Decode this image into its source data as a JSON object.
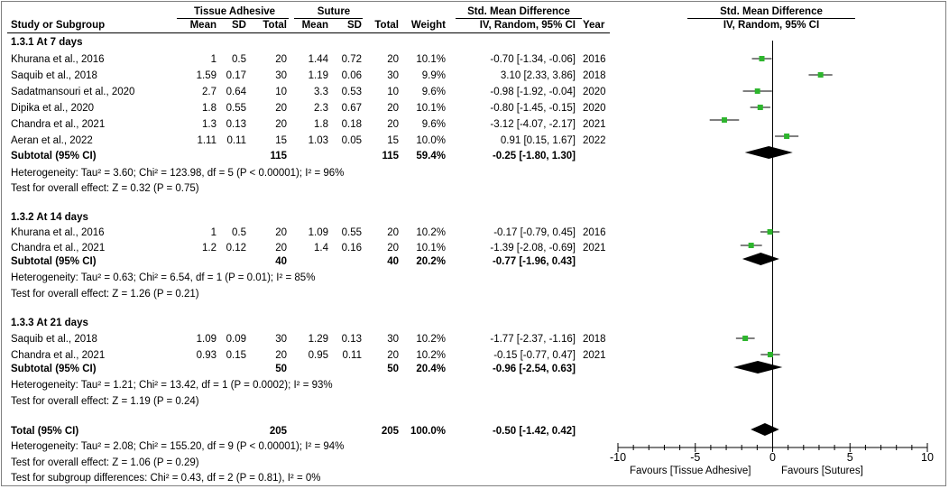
{
  "header": {
    "group1": "Tissue Adhesive",
    "group2": "Suture",
    "smd_header": "Std. Mean Difference",
    "plot_header": "Std. Mean Difference",
    "col_study": "Study or Subgroup",
    "col_mean1": "Mean",
    "col_sd1": "SD",
    "col_total1": "Total",
    "col_mean2": "Mean",
    "col_sd2": "SD",
    "col_total2": "Total",
    "col_weight": "Weight",
    "col_ci": "IV, Random, 95% CI",
    "col_year": "Year",
    "plot_sub": "IV, Random, 95% CI"
  },
  "groups": [
    {
      "title": "1.3.1 At 7 days",
      "studies": [
        {
          "name": "Khurana et al., 2016",
          "m1": "1",
          "sd1": "0.5",
          "n1": "20",
          "m2": "1.44",
          "sd2": "0.72",
          "n2": "20",
          "weight": "10.1%",
          "ci": "-0.70 [-1.34, -0.06]",
          "year": "2016"
        },
        {
          "name": "Saquib et al., 2018",
          "m1": "1.59",
          "sd1": "0.17",
          "n1": "30",
          "m2": "1.19",
          "sd2": "0.06",
          "n2": "30",
          "weight": "9.9%",
          "ci": "3.10 [2.33, 3.86]",
          "year": "2018"
        },
        {
          "name": "Sadatmansouri et al., 2020",
          "m1": "2.7",
          "sd1": "0.64",
          "n1": "10",
          "m2": "3.3",
          "sd2": "0.53",
          "n2": "10",
          "weight": "9.6%",
          "ci": "-0.98 [-1.92, -0.04]",
          "year": "2020"
        },
        {
          "name": "Dipika et al., 2020",
          "m1": "1.8",
          "sd1": "0.55",
          "n1": "20",
          "m2": "2.3",
          "sd2": "0.67",
          "n2": "20",
          "weight": "10.1%",
          "ci": "-0.80 [-1.45, -0.15]",
          "year": "2020"
        },
        {
          "name": "Chandra et al., 2021",
          "m1": "1.3",
          "sd1": "0.13",
          "n1": "20",
          "m2": "1.8",
          "sd2": "0.18",
          "n2": "20",
          "weight": "9.6%",
          "ci": "-3.12 [-4.07, -2.17]",
          "year": "2021"
        },
        {
          "name": "Aeran et al., 2022",
          "m1": "1.11",
          "sd1": "0.11",
          "n1": "15",
          "m2": "1.03",
          "sd2": "0.05",
          "n2": "15",
          "weight": "10.0%",
          "ci": "0.91 [0.15, 1.67]",
          "year": "2022"
        }
      ],
      "subtotal": {
        "label": "Subtotal (95% CI)",
        "n1": "115",
        "n2": "115",
        "weight": "59.4%",
        "ci": "-0.25 [-1.80, 1.30]"
      },
      "heterogeneity": "Heterogeneity: Tau² = 3.60; Chi² = 123.98, df = 5 (P < 0.00001); I² = 96%",
      "overall": "Test for overall effect: Z = 0.32 (P = 0.75)"
    },
    {
      "title": "1.3.2 At 14 days",
      "studies": [
        {
          "name": "Khurana et al., 2016",
          "m1": "1",
          "sd1": "0.5",
          "n1": "20",
          "m2": "1.09",
          "sd2": "0.55",
          "n2": "20",
          "weight": "10.2%",
          "ci": "-0.17 [-0.79, 0.45]",
          "year": "2016"
        },
        {
          "name": "Chandra et al., 2021",
          "m1": "1.2",
          "sd1": "0.12",
          "n1": "20",
          "m2": "1.4",
          "sd2": "0.16",
          "n2": "20",
          "weight": "10.1%",
          "ci": "-1.39 [-2.08, -0.69]",
          "year": "2021"
        }
      ],
      "subtotal": {
        "label": "Subtotal (95% CI)",
        "n1": "40",
        "n2": "40",
        "weight": "20.2%",
        "ci": "-0.77 [-1.96, 0.43]"
      },
      "heterogeneity": "Heterogeneity: Tau² = 0.63; Chi² = 6.54, df = 1 (P = 0.01); I² = 85%",
      "overall": "Test for overall effect: Z = 1.26 (P = 0.21)"
    },
    {
      "title": "1.3.3 At 21 days",
      "studies": [
        {
          "name": "Saquib et al., 2018",
          "m1": "1.09",
          "sd1": "0.09",
          "n1": "30",
          "m2": "1.29",
          "sd2": "0.13",
          "n2": "30",
          "weight": "10.2%",
          "ci": "-1.77 [-2.37, -1.16]",
          "year": "2018"
        },
        {
          "name": "Chandra et al., 2021",
          "m1": "0.93",
          "sd1": "0.15",
          "n1": "20",
          "m2": "0.95",
          "sd2": "0.11",
          "n2": "20",
          "weight": "10.2%",
          "ci": "-0.15 [-0.77, 0.47]",
          "year": "2021"
        }
      ],
      "subtotal": {
        "label": "Subtotal (95% CI)",
        "n1": "50",
        "n2": "50",
        "weight": "20.4%",
        "ci": "-0.96 [-2.54, 0.63]"
      },
      "heterogeneity": "Heterogeneity: Tau² = 1.21; Chi² = 13.42, df = 1 (P = 0.0002); I² = 93%",
      "overall": "Test for overall effect: Z = 1.19 (P = 0.24)"
    }
  ],
  "total": {
    "label": "Total (95% CI)",
    "n1": "205",
    "n2": "205",
    "weight": "100.0%",
    "ci": "-0.50 [-1.42, 0.42]"
  },
  "footer": {
    "heterogeneity": "Heterogeneity: Tau² = 2.08; Chi² = 155.20, df = 9 (P < 0.00001); I² = 94%",
    "overall": "Test for overall effect: Z = 1.06 (P = 0.29)",
    "subgroup": "Test for subgroup differences: Chi² = 0.43, df = 2 (P = 0.81), I² = 0%"
  },
  "colors": {
    "point": "#2db52d",
    "diamond": "#000000",
    "line": "#000000"
  },
  "chart_data": {
    "type": "forest",
    "xlim": [
      -10,
      10
    ],
    "ticks": [
      -10,
      -5,
      0,
      5,
      10
    ],
    "tick_labels": [
      "-10",
      "-5",
      "0",
      "5",
      "10"
    ],
    "xlabel_left": "Favours [Tissue Adhesive]",
    "xlabel_right": "Favours [Sutures]",
    "studies": [
      {
        "label": "Khurana et al., 2016",
        "group": "1.3.1 At 7 days",
        "est": -0.7,
        "lo": -1.34,
        "hi": -0.06,
        "weight": 10.1
      },
      {
        "label": "Saquib et al., 2018",
        "group": "1.3.1 At 7 days",
        "est": 3.1,
        "lo": 2.33,
        "hi": 3.86,
        "weight": 9.9
      },
      {
        "label": "Sadatmansouri et al., 2020",
        "group": "1.3.1 At 7 days",
        "est": -0.98,
        "lo": -1.92,
        "hi": -0.04,
        "weight": 9.6
      },
      {
        "label": "Dipika et al., 2020",
        "group": "1.3.1 At 7 days",
        "est": -0.8,
        "lo": -1.45,
        "hi": -0.15,
        "weight": 10.1
      },
      {
        "label": "Chandra et al., 2021",
        "group": "1.3.1 At 7 days",
        "est": -3.12,
        "lo": -4.07,
        "hi": -2.17,
        "weight": 9.6
      },
      {
        "label": "Aeran et al., 2022",
        "group": "1.3.1 At 7 days",
        "est": 0.91,
        "lo": 0.15,
        "hi": 1.67,
        "weight": 10.0
      },
      {
        "label": "Khurana et al., 2016",
        "group": "1.3.2 At 14 days",
        "est": -0.17,
        "lo": -0.79,
        "hi": 0.45,
        "weight": 10.2
      },
      {
        "label": "Chandra et al., 2021",
        "group": "1.3.2 At 14 days",
        "est": -1.39,
        "lo": -2.08,
        "hi": -0.69,
        "weight": 10.1
      },
      {
        "label": "Saquib et al., 2018",
        "group": "1.3.3 At 21 days",
        "est": -1.77,
        "lo": -2.37,
        "hi": -1.16,
        "weight": 10.2
      },
      {
        "label": "Chandra et al., 2021",
        "group": "1.3.3 At 21 days",
        "est": -0.15,
        "lo": -0.77,
        "hi": 0.47,
        "weight": 10.2
      }
    ],
    "diamonds": [
      {
        "label": "Subtotal (95% CI)",
        "group": "1.3.1 At 7 days",
        "est": -0.25,
        "lo": -1.8,
        "hi": 1.3
      },
      {
        "label": "Subtotal (95% CI)",
        "group": "1.3.2 At 14 days",
        "est": -0.77,
        "lo": -1.96,
        "hi": 0.43
      },
      {
        "label": "Subtotal (95% CI)",
        "group": "1.3.3 At 21 days",
        "est": -0.96,
        "lo": -2.54,
        "hi": 0.63
      },
      {
        "label": "Total (95% CI)",
        "group": "",
        "est": -0.5,
        "lo": -1.42,
        "hi": 0.42
      }
    ]
  }
}
